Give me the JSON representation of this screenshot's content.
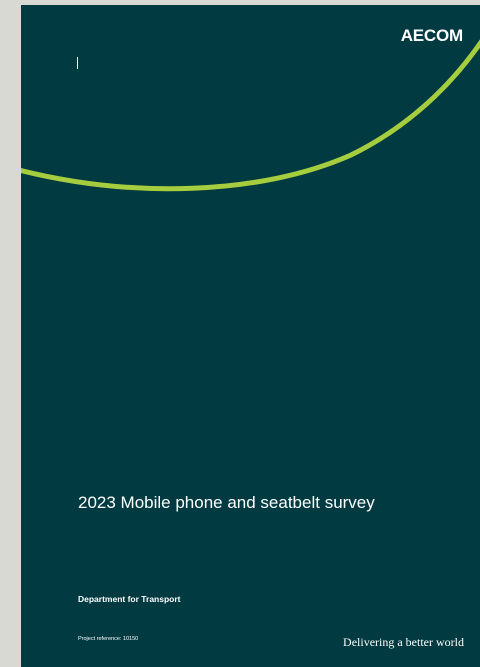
{
  "cover": {
    "logo_text": "AECOM",
    "title": "2023 Mobile phone and seatbelt survey",
    "organisation": "Department for Transport",
    "project_reference": "Project reference: 10150",
    "tagline": "Delivering a better world"
  },
  "colors": {
    "background": "#013a40",
    "accent_arc": "#a6cd3e",
    "viewer_margin": "#d9d9d4",
    "text": "#ffffff"
  }
}
